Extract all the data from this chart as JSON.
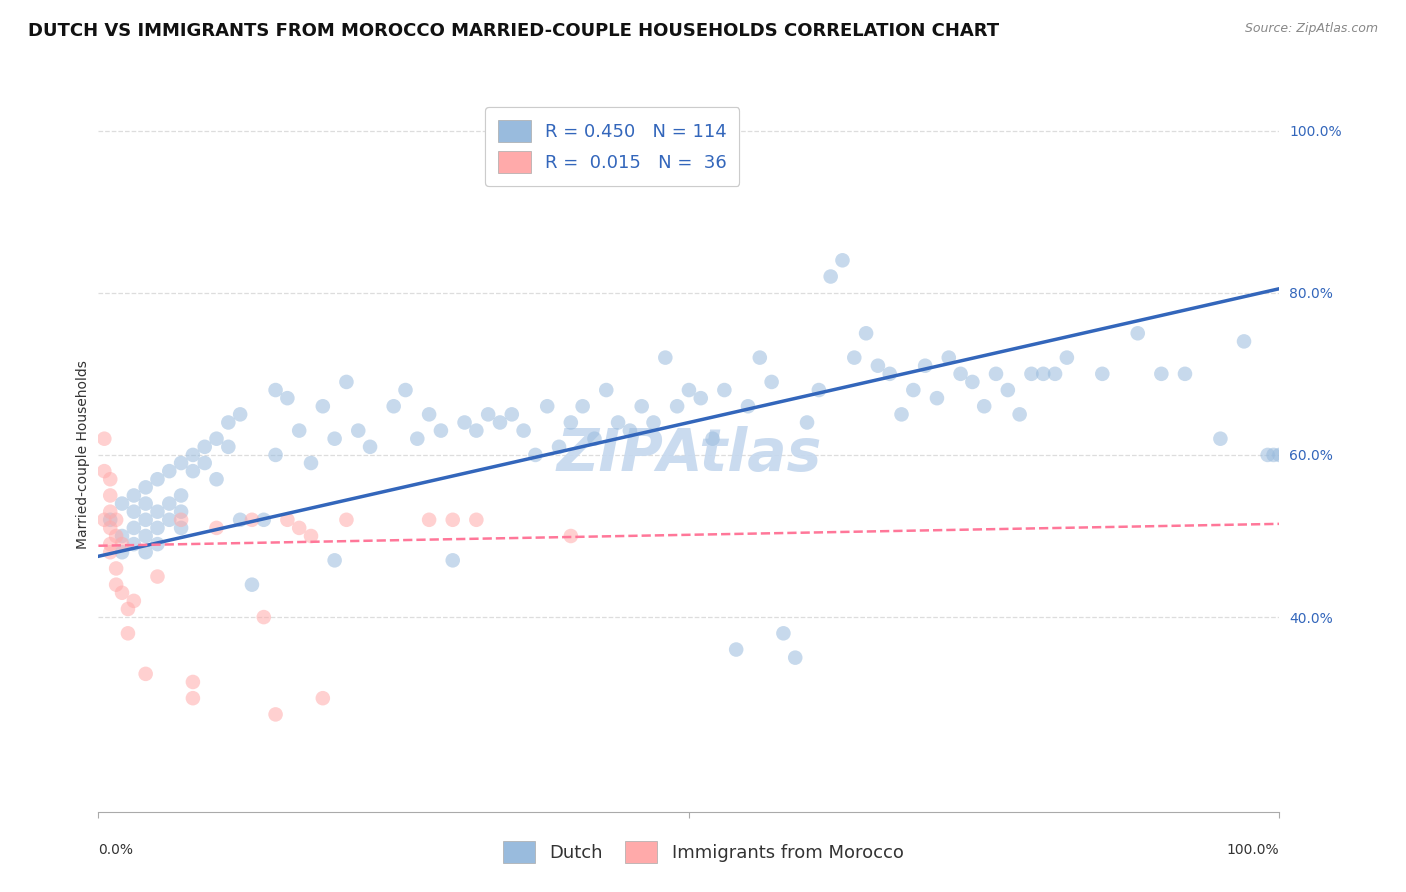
{
  "title": "DUTCH VS IMMIGRANTS FROM MOROCCO MARRIED-COUPLE HOUSEHOLDS CORRELATION CHART",
  "source": "Source: ZipAtlas.com",
  "ylabel": "Married-couple Households",
  "watermark": "ZIPAtlas",
  "legend_dutch_r": "R = 0.450",
  "legend_dutch_n": "N = 114",
  "legend_morocco_r": "R =  0.015",
  "legend_morocco_n": "N =  36",
  "dutch_color": "#99BBDD",
  "morocco_color": "#FFAAAA",
  "dutch_line_color": "#3366BB",
  "morocco_line_color": "#FF7799",
  "dutch_scatter_x": [
    0.01,
    0.02,
    0.02,
    0.02,
    0.03,
    0.03,
    0.03,
    0.03,
    0.04,
    0.04,
    0.04,
    0.04,
    0.04,
    0.05,
    0.05,
    0.05,
    0.05,
    0.06,
    0.06,
    0.06,
    0.07,
    0.07,
    0.07,
    0.07,
    0.08,
    0.08,
    0.09,
    0.09,
    0.1,
    0.1,
    0.11,
    0.11,
    0.12,
    0.12,
    0.13,
    0.14,
    0.15,
    0.15,
    0.16,
    0.17,
    0.18,
    0.19,
    0.2,
    0.2,
    0.21,
    0.22,
    0.23,
    0.25,
    0.26,
    0.27,
    0.28,
    0.29,
    0.3,
    0.31,
    0.32,
    0.33,
    0.34,
    0.35,
    0.36,
    0.37,
    0.38,
    0.39,
    0.4,
    0.41,
    0.42,
    0.43,
    0.44,
    0.45,
    0.46,
    0.47,
    0.48,
    0.49,
    0.5,
    0.51,
    0.52,
    0.53,
    0.54,
    0.55,
    0.56,
    0.57,
    0.58,
    0.59,
    0.6,
    0.61,
    0.62,
    0.63,
    0.64,
    0.65,
    0.66,
    0.67,
    0.68,
    0.69,
    0.7,
    0.71,
    0.72,
    0.73,
    0.74,
    0.75,
    0.76,
    0.77,
    0.78,
    0.79,
    0.8,
    0.81,
    0.82,
    0.85,
    0.88,
    0.9,
    0.92,
    0.95,
    0.97,
    0.99,
    0.995,
    1.0
  ],
  "dutch_scatter_y": [
    0.52,
    0.5,
    0.54,
    0.48,
    0.53,
    0.51,
    0.55,
    0.49,
    0.56,
    0.52,
    0.5,
    0.54,
    0.48,
    0.57,
    0.53,
    0.51,
    0.49,
    0.58,
    0.54,
    0.52,
    0.59,
    0.55,
    0.53,
    0.51,
    0.6,
    0.58,
    0.61,
    0.59,
    0.62,
    0.57,
    0.64,
    0.61,
    0.65,
    0.52,
    0.44,
    0.52,
    0.68,
    0.6,
    0.67,
    0.63,
    0.59,
    0.66,
    0.47,
    0.62,
    0.69,
    0.63,
    0.61,
    0.66,
    0.68,
    0.62,
    0.65,
    0.63,
    0.47,
    0.64,
    0.63,
    0.65,
    0.64,
    0.65,
    0.63,
    0.6,
    0.66,
    0.61,
    0.64,
    0.66,
    0.62,
    0.68,
    0.64,
    0.63,
    0.66,
    0.64,
    0.72,
    0.66,
    0.68,
    0.67,
    0.62,
    0.68,
    0.36,
    0.66,
    0.72,
    0.69,
    0.38,
    0.35,
    0.64,
    0.68,
    0.82,
    0.84,
    0.72,
    0.75,
    0.71,
    0.7,
    0.65,
    0.68,
    0.71,
    0.67,
    0.72,
    0.7,
    0.69,
    0.66,
    0.7,
    0.68,
    0.65,
    0.7,
    0.7,
    0.7,
    0.72,
    0.7,
    0.75,
    0.7,
    0.7,
    0.62,
    0.74,
    0.6,
    0.6,
    0.6
  ],
  "morocco_scatter_x": [
    0.005,
    0.005,
    0.005,
    0.01,
    0.01,
    0.01,
    0.01,
    0.01,
    0.01,
    0.015,
    0.015,
    0.015,
    0.015,
    0.02,
    0.02,
    0.025,
    0.025,
    0.03,
    0.04,
    0.05,
    0.07,
    0.08,
    0.08,
    0.1,
    0.13,
    0.14,
    0.15,
    0.16,
    0.17,
    0.18,
    0.19,
    0.21,
    0.28,
    0.3,
    0.32,
    0.4
  ],
  "morocco_scatter_y": [
    0.52,
    0.58,
    0.62,
    0.49,
    0.51,
    0.53,
    0.55,
    0.57,
    0.48,
    0.5,
    0.52,
    0.46,
    0.44,
    0.49,
    0.43,
    0.41,
    0.38,
    0.42,
    0.33,
    0.45,
    0.52,
    0.3,
    0.32,
    0.51,
    0.52,
    0.4,
    0.28,
    0.52,
    0.51,
    0.5,
    0.3,
    0.52,
    0.52,
    0.52,
    0.52,
    0.5
  ],
  "dutch_line_x0": 0.0,
  "dutch_line_x1": 1.0,
  "dutch_line_y0": 0.475,
  "dutch_line_y1": 0.805,
  "morocco_line_x0": 0.0,
  "morocco_line_x1": 1.0,
  "morocco_line_y0": 0.488,
  "morocco_line_y1": 0.515,
  "xlim": [
    0.0,
    1.0
  ],
  "ylim": [
    0.16,
    1.04
  ],
  "ytick_vals": [
    1.0,
    0.8,
    0.6,
    0.4
  ],
  "ytick_labels": [
    "100.0%",
    "80.0%",
    "60.0%",
    "40.0%"
  ],
  "xtick_vals": [
    0.0,
    0.5,
    1.0
  ],
  "background_color": "#ffffff",
  "grid_color": "#dddddd",
  "title_fontsize": 13,
  "axis_label_fontsize": 10,
  "tick_fontsize": 10,
  "legend_fontsize": 13,
  "watermark_color": "#c5d8ee",
  "watermark_fontsize": 42,
  "scatter_size": 110,
  "scatter_alpha": 0.55
}
